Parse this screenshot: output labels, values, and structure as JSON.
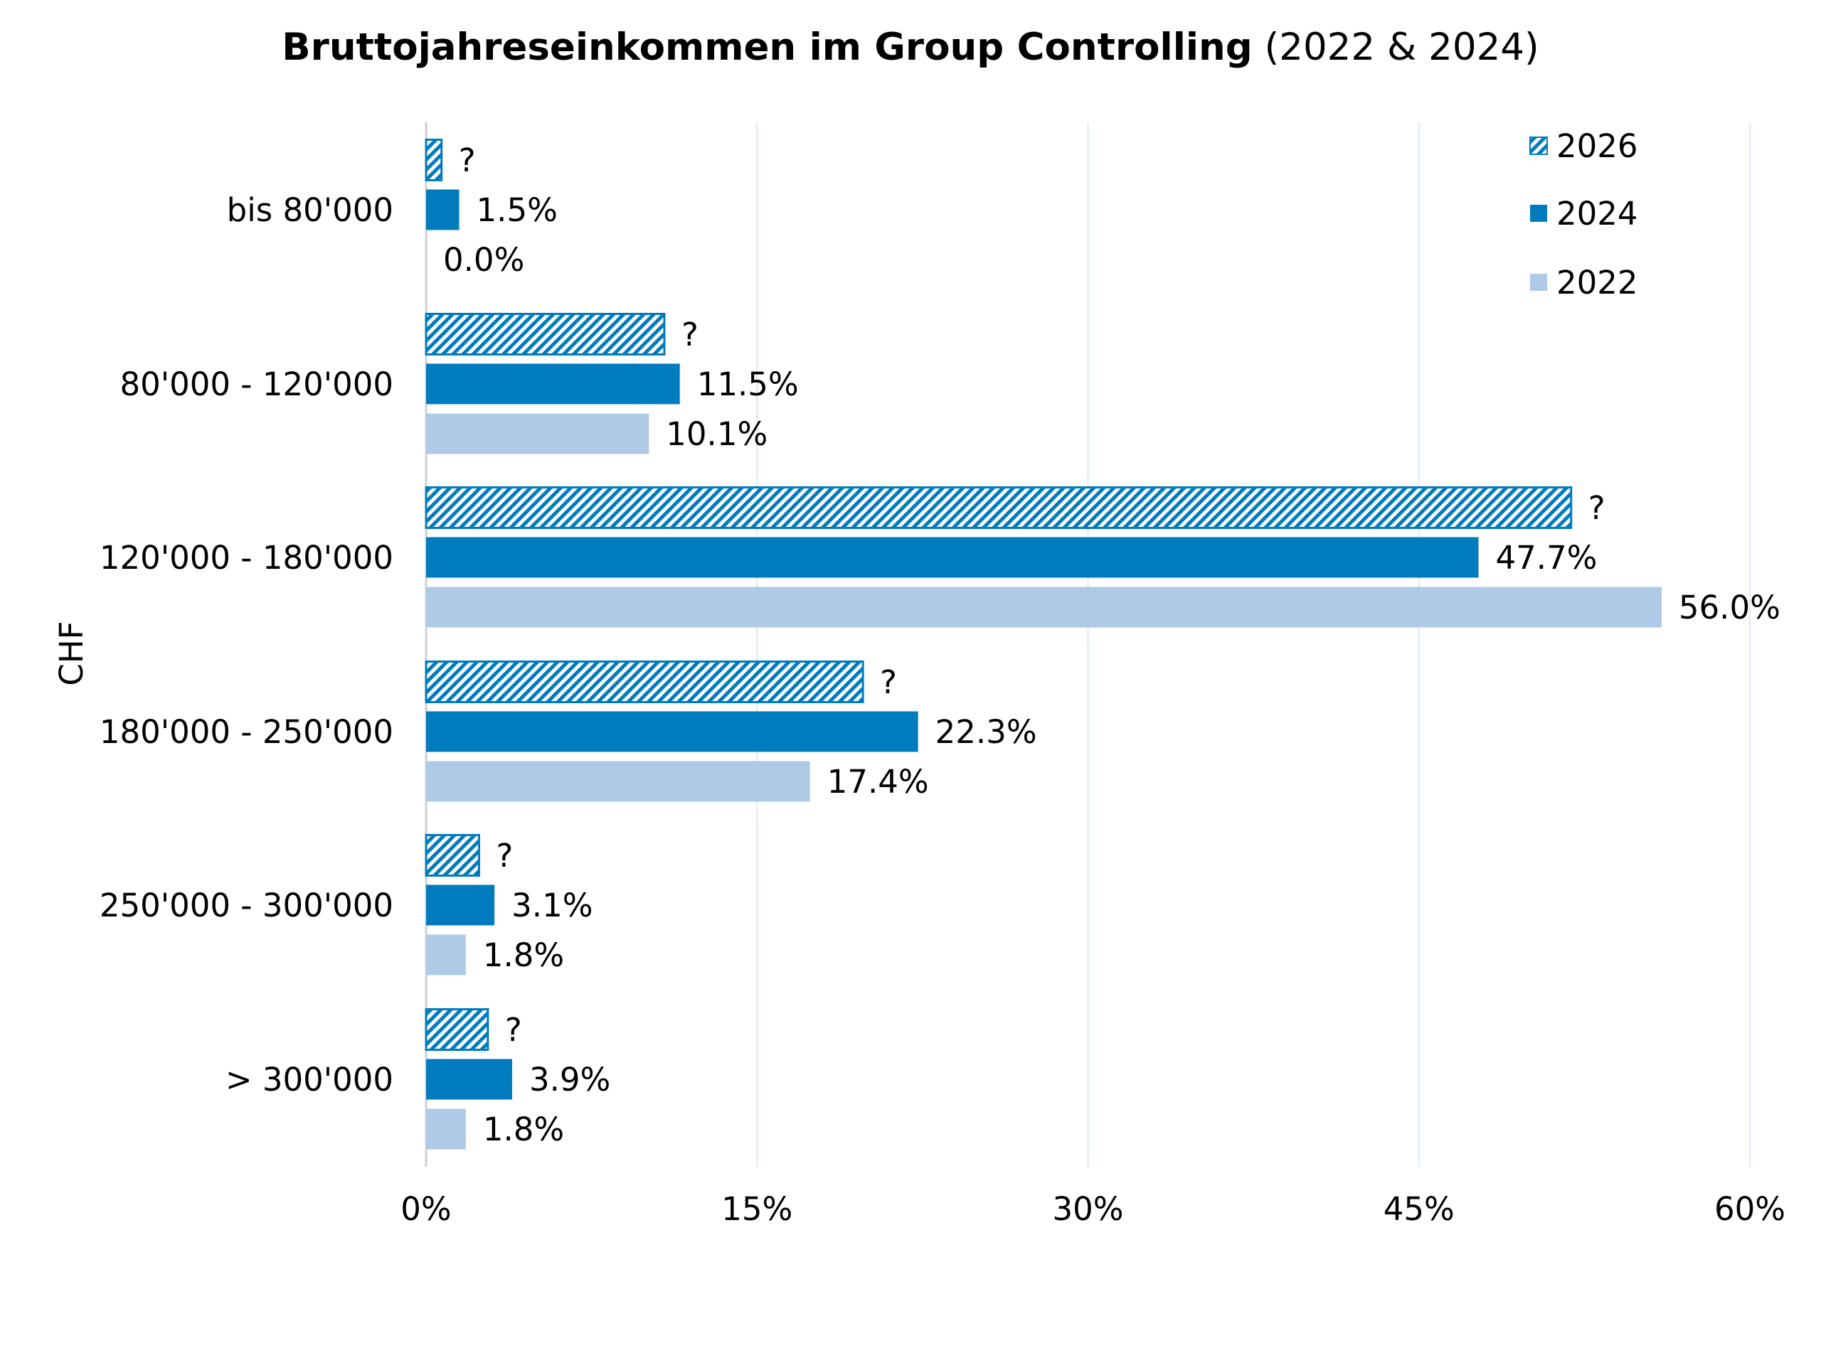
{
  "chart_data": {
    "type": "bar",
    "orientation": "horizontal",
    "title": "Bruttojahreseinkommen im Group Controlling",
    "subtitle": "(2022 & 2024)",
    "xlabel": "",
    "ylabel": "CHF",
    "categories": [
      "bis 80'000",
      "80'000 - 120'000",
      "120'000 - 180'000",
      "180'000 - 250'000",
      "250'000 - 300'000",
      "> 300'000"
    ],
    "xlim": [
      0,
      60
    ],
    "xticks": [
      0,
      15,
      30,
      45,
      60
    ],
    "xtick_labels": [
      "0%",
      "15%",
      "30%",
      "45%",
      "60%"
    ],
    "grid": "vertical",
    "legend_position": "top-right",
    "series": [
      {
        "name": "2026",
        "color": "#007bbd",
        "pattern": "hatched",
        "values": [
          0.7,
          10.8,
          51.9,
          19.8,
          2.4,
          2.8
        ],
        "labels": [
          "?",
          "?",
          "?",
          "?",
          "?",
          "?"
        ]
      },
      {
        "name": "2024",
        "color": "#007bbd",
        "pattern": "solid",
        "values": [
          1.5,
          11.5,
          47.7,
          22.3,
          3.1,
          3.9
        ],
        "labels": [
          "1.5%",
          "11.5%",
          "47.7%",
          "22.3%",
          "3.1%",
          "3.9%"
        ]
      },
      {
        "name": "2022",
        "color": "#afcae6",
        "pattern": "solid",
        "values": [
          0.0,
          10.1,
          56.0,
          17.4,
          1.8,
          1.8
        ],
        "labels": [
          "0.0%",
          "10.1%",
          "56.0%",
          "17.4%",
          "1.8%",
          "1.8%"
        ]
      }
    ],
    "gridline_color": "#e6eef8"
  }
}
